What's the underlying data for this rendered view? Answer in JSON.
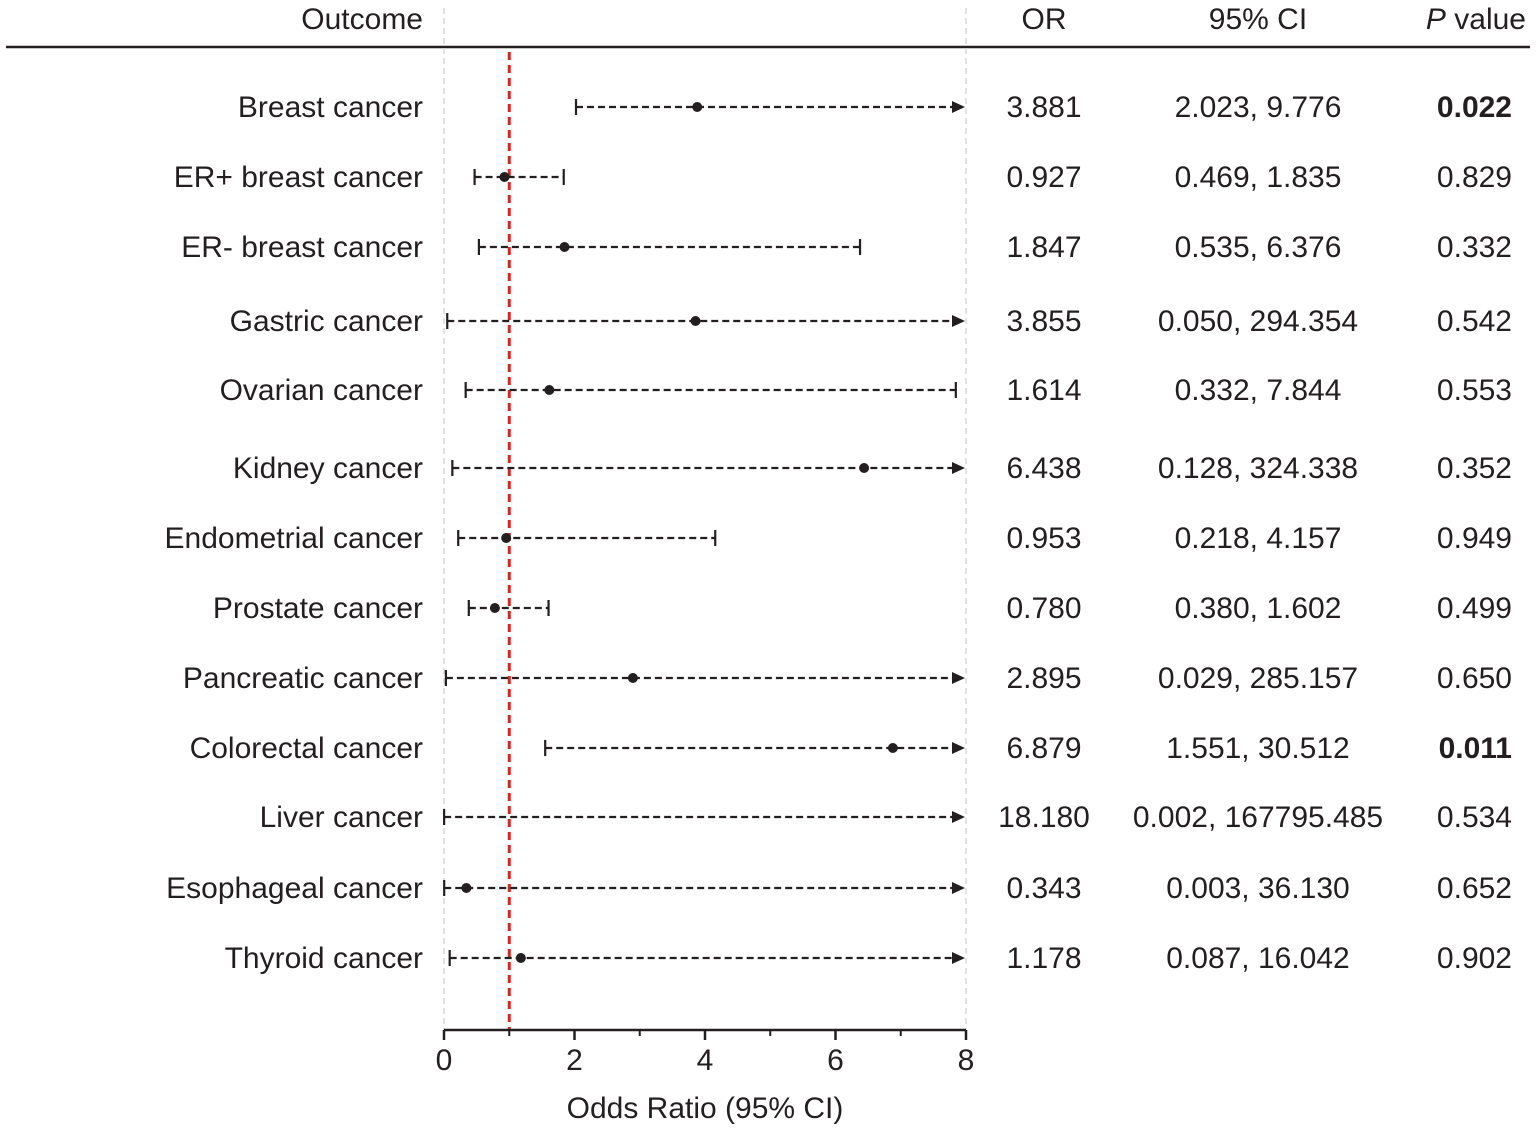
{
  "chart_data": {
    "type": "forest",
    "headers": {
      "outcome": "Outcome",
      "or": "OR",
      "ci": "95% CI",
      "p_italic": "P",
      "p_rest": " value"
    },
    "xlabel": "Odds Ratio (95% CI)",
    "xlim": [
      0,
      8
    ],
    "xticks": [
      "0",
      "2",
      "4",
      "6",
      "8"
    ],
    "reference_line": 1,
    "reference_color": "#d7261e",
    "rows": [
      {
        "outcome": "Breast cancer",
        "or_text": "3.881",
        "ci_text": "2.023, 9.776",
        "p_text": "0.022",
        "or": 3.881,
        "lo": 2.023,
        "hi": 9.776,
        "significant": true
      },
      {
        "outcome": "ER+ breast cancer",
        "or_text": "0.927",
        "ci_text": "0.469, 1.835",
        "p_text": "0.829",
        "or": 0.927,
        "lo": 0.469,
        "hi": 1.835,
        "significant": false
      },
      {
        "outcome": "ER- breast cancer",
        "or_text": "1.847",
        "ci_text": "0.535, 6.376",
        "p_text": "0.332",
        "or": 1.847,
        "lo": 0.535,
        "hi": 6.376,
        "significant": false
      },
      {
        "outcome": "Gastric cancer",
        "or_text": "3.855",
        "ci_text": "0.050, 294.354",
        "p_text": "0.542",
        "or": 3.855,
        "lo": 0.05,
        "hi": 294.354,
        "significant": false
      },
      {
        "outcome": "Ovarian cancer",
        "or_text": "1.614",
        "ci_text": "0.332, 7.844",
        "p_text": "0.553",
        "or": 1.614,
        "lo": 0.332,
        "hi": 7.844,
        "significant": false
      },
      {
        "outcome": "Kidney cancer",
        "or_text": "6.438",
        "ci_text": "0.128, 324.338",
        "p_text": "0.352",
        "or": 6.438,
        "lo": 0.128,
        "hi": 324.338,
        "significant": false
      },
      {
        "outcome": "Endometrial cancer",
        "or_text": "0.953",
        "ci_text": "0.218, 4.157",
        "p_text": "0.949",
        "or": 0.953,
        "lo": 0.218,
        "hi": 4.157,
        "significant": false
      },
      {
        "outcome": "Prostate cancer",
        "or_text": "0.780",
        "ci_text": "0.380, 1.602",
        "p_text": "0.499",
        "or": 0.78,
        "lo": 0.38,
        "hi": 1.602,
        "significant": false
      },
      {
        "outcome": "Pancreatic cancer",
        "or_text": "2.895",
        "ci_text": "0.029, 285.157",
        "p_text": "0.650",
        "or": 2.895,
        "lo": 0.029,
        "hi": 285.157,
        "significant": false
      },
      {
        "outcome": "Colorectal cancer",
        "or_text": "6.879",
        "ci_text": "1.551, 30.512",
        "p_text": "0.011",
        "or": 6.879,
        "lo": 1.551,
        "hi": 30.512,
        "significant": true
      },
      {
        "outcome": "Liver cancer",
        "or_text": "18.180",
        "ci_text": "0.002, 167795.485",
        "p_text": "0.534",
        "or": 18.18,
        "lo": 0.002,
        "hi": 167795.485,
        "significant": false
      },
      {
        "outcome": "Esophageal cancer",
        "or_text": "0.343",
        "ci_text": "0.003, 36.130",
        "p_text": "0.652",
        "or": 0.343,
        "lo": 0.003,
        "hi": 36.13,
        "significant": false
      },
      {
        "outcome": "Thyroid cancer",
        "or_text": "1.178",
        "ci_text": "0.087, 16.042",
        "p_text": "0.902",
        "or": 1.178,
        "lo": 0.087,
        "hi": 16.042,
        "significant": false
      }
    ]
  }
}
